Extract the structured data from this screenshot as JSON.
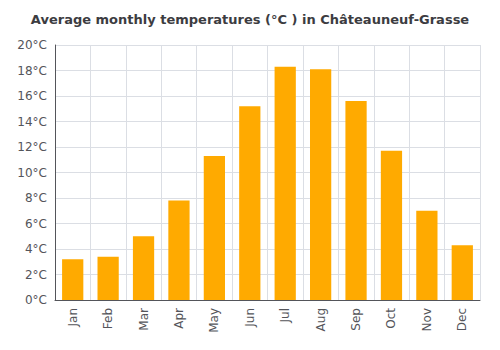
{
  "chart_data": {
    "type": "bar",
    "title": "Average monthly temperatures (°C ) in Châteauneuf-Grasse",
    "categories": [
      "Jan",
      "Feb",
      "Mar",
      "Apr",
      "May",
      "Jun",
      "Jul",
      "Aug",
      "Sep",
      "Oct",
      "Nov",
      "Dec"
    ],
    "values": [
      3.2,
      3.4,
      5.0,
      7.8,
      11.3,
      15.2,
      18.3,
      18.1,
      15.6,
      11.7,
      7.0,
      4.3
    ],
    "color": "#FFAA00",
    "ylim": [
      0,
      20
    ],
    "yticks": [
      {
        "value": 0,
        "label": "0°C"
      },
      {
        "value": 2,
        "label": "2°C"
      },
      {
        "value": 4,
        "label": "4°C"
      },
      {
        "value": 6,
        "label": "6°C"
      },
      {
        "value": 8,
        "label": "8°C"
      },
      {
        "value": 10,
        "label": "10°C"
      },
      {
        "value": 12,
        "label": "12°C"
      },
      {
        "value": 14,
        "label": "14°C"
      },
      {
        "value": 16,
        "label": "16°C"
      },
      {
        "value": 18,
        "label": "18°C"
      },
      {
        "value": 20,
        "label": "20°C"
      }
    ],
    "grid": true
  }
}
